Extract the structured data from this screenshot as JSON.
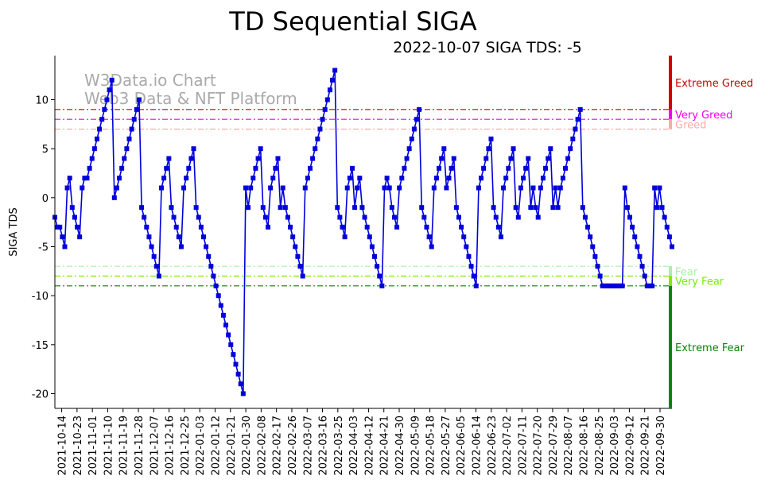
{
  "chart_data": {
    "type": "line",
    "title": "TD Sequential SIGA",
    "subtitle": "2022-10-07 SIGA TDS: -5",
    "ylabel": "SIGA TDS",
    "xlabel": "",
    "ylim": [
      -21.5,
      14.5
    ],
    "yticks": [
      10,
      5,
      0,
      -5,
      -10,
      -15,
      -20
    ],
    "watermark": [
      "W3Data.io Chart",
      "Web3 Data & NFT Platform"
    ],
    "x_start": "2021-10-10",
    "x_end": "2022-10-07",
    "xticks": [
      "2021-10-14",
      "2021-10-23",
      "2021-11-01",
      "2021-11-10",
      "2021-11-19",
      "2021-11-28",
      "2021-12-07",
      "2021-12-16",
      "2021-12-25",
      "2022-01-03",
      "2022-01-12",
      "2022-01-21",
      "2022-01-30",
      "2022-02-08",
      "2022-02-17",
      "2022-02-26",
      "2022-03-07",
      "2022-03-16",
      "2022-03-25",
      "2022-04-03",
      "2022-04-12",
      "2022-04-21",
      "2022-04-30",
      "2022-05-09",
      "2022-05-18",
      "2022-05-27",
      "2022-06-05",
      "2022-06-14",
      "2022-06-23",
      "2022-07-02",
      "2022-07-11",
      "2022-07-20",
      "2022-07-29",
      "2022-08-07",
      "2022-08-16",
      "2022-08-25",
      "2022-09-03",
      "2022-09-12",
      "2022-09-21",
      "2022-09-30"
    ],
    "thresholds": [
      {
        "label": "Extreme Greed",
        "value": 9,
        "color": "#cc0000"
      },
      {
        "label": "Very Greed",
        "value": 8,
        "color": "#ee00ee"
      },
      {
        "label": "Greed",
        "value": 7,
        "color": "#ffaaaa"
      },
      {
        "label": "Fear",
        "value": -7,
        "color": "#aaeeaa"
      },
      {
        "label": "Very Fear",
        "value": -8,
        "color": "#77ee00"
      },
      {
        "label": "Extreme Fear",
        "value": -9,
        "color": "#008800"
      }
    ],
    "series": [
      {
        "name": "SIGA TDS",
        "color": "#0000dd",
        "values": [
          -2,
          -3,
          -3,
          -4,
          -5,
          1,
          2,
          -1,
          -2,
          -3,
          -4,
          1,
          2,
          2,
          3,
          4,
          5,
          6,
          7,
          8,
          9,
          10,
          11,
          12,
          0,
          1,
          2,
          3,
          4,
          5,
          6,
          7,
          8,
          9,
          10,
          -1,
          -2,
          -3,
          -4,
          -5,
          -6,
          -7,
          -8,
          1,
          2,
          3,
          4,
          -1,
          -2,
          -3,
          -4,
          -5,
          1,
          2,
          3,
          4,
          5,
          -1,
          -2,
          -3,
          -4,
          -5,
          -6,
          -7,
          -8,
          -9,
          -10,
          -11,
          -12,
          -13,
          -14,
          -15,
          -16,
          -17,
          -18,
          -19,
          -20,
          1,
          -1,
          1,
          2,
          3,
          4,
          5,
          -1,
          -2,
          -3,
          1,
          2,
          3,
          4,
          -1,
          1,
          -1,
          -2,
          -3,
          -4,
          -5,
          -6,
          -7,
          -8,
          1,
          2,
          3,
          4,
          5,
          6,
          7,
          8,
          9,
          10,
          11,
          12,
          13,
          -1,
          -2,
          -3,
          -4,
          1,
          2,
          3,
          -1,
          1,
          2,
          -1,
          -2,
          -3,
          -4,
          -5,
          -6,
          -7,
          -8,
          -9,
          1,
          2,
          1,
          -1,
          -2,
          -3,
          1,
          2,
          3,
          4,
          5,
          6,
          7,
          8,
          9,
          -1,
          -2,
          -3,
          -4,
          -5,
          1,
          2,
          3,
          4,
          5,
          1,
          2,
          3,
          4,
          -1,
          -2,
          -3,
          -4,
          -5,
          -6,
          -7,
          -8,
          -9,
          1,
          2,
          3,
          4,
          5,
          6,
          -1,
          -2,
          -3,
          -4,
          1,
          2,
          3,
          4,
          5,
          -1,
          -2,
          1,
          2,
          3,
          4,
          -1,
          1,
          -1,
          -2,
          1,
          2,
          3,
          4,
          5,
          -1,
          1,
          -1,
          1,
          2,
          3,
          4,
          5,
          6,
          7,
          8,
          9,
          -1,
          -2,
          -3,
          -4,
          -5,
          -6,
          -7,
          -8,
          -9,
          -9,
          -9,
          -9,
          -9,
          -9,
          -9,
          -9,
          -9,
          1,
          -1,
          -2,
          -3,
          -4,
          -5,
          -6,
          -7,
          -8,
          -9,
          -9,
          -9,
          1,
          -1,
          1,
          -1,
          -2,
          -3,
          -4,
          -5
        ]
      }
    ]
  }
}
